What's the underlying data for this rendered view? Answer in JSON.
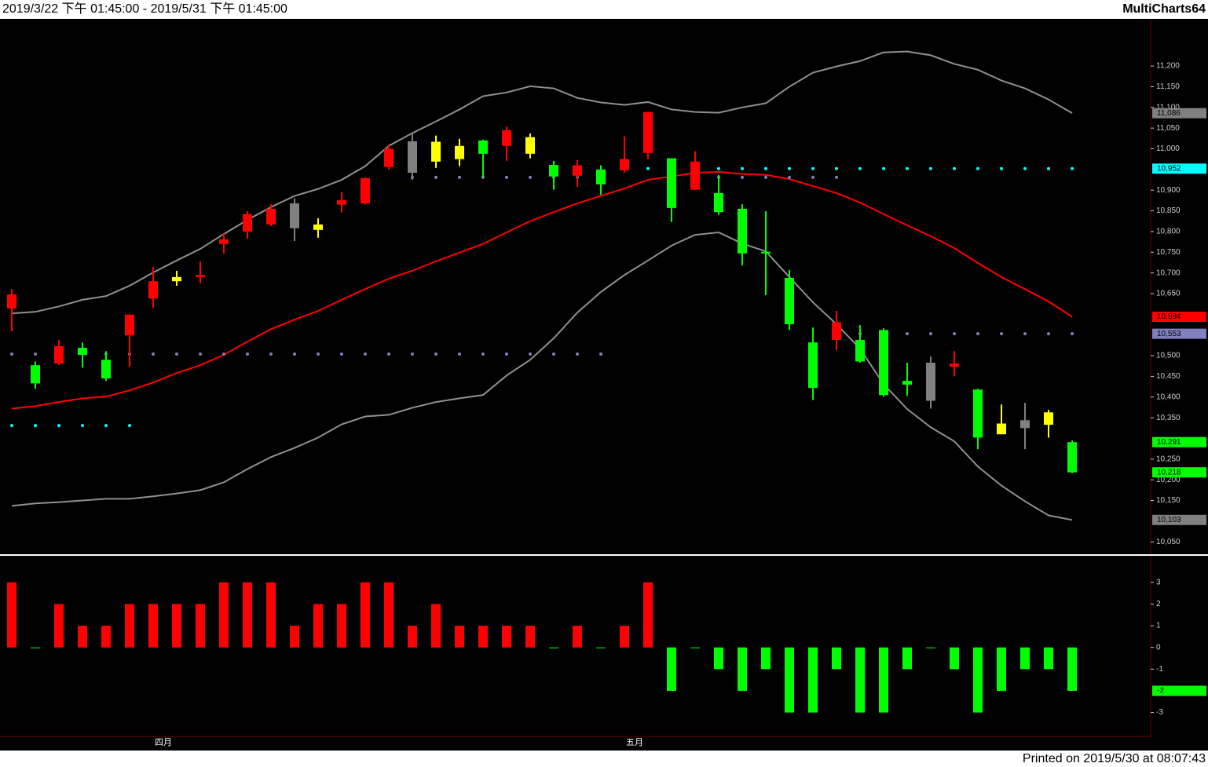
{
  "header": {
    "range": "2019/3/22 下午 01:45:00 - 2019/5/31 下午 01:45:00",
    "app": "MultiCharts64"
  },
  "footer": "Printed on 2019/5/30 at 08:07:43",
  "chart_data": [
    {
      "type": "candlestick",
      "open": [
        10614,
        10477,
        10481,
        10519,
        10490,
        10549,
        10638,
        10680,
        10690,
        10770,
        10800,
        10817,
        10868,
        10804,
        10865,
        10868,
        10956,
        11018,
        10969,
        10975,
        11020,
        11007,
        10988,
        10961,
        10935,
        10950,
        10948,
        10990,
        10977,
        10901,
        10893,
        10855,
        10751,
        10688,
        10532,
        10538,
        10538,
        10562,
        10439,
        10483,
        10473,
        10418,
        10336,
        10344,
        10333,
        10291
      ],
      "high": [
        10661,
        10486,
        10538,
        10532,
        10511,
        10600,
        10714,
        10705,
        10728,
        10796,
        10849,
        10866,
        10880,
        10832,
        10895,
        10931,
        11011,
        11036,
        11032,
        11024,
        11022,
        11053,
        11037,
        10971,
        10973,
        10960,
        11030,
        11089,
        10977,
        10994,
        10937,
        10866,
        10849,
        10707,
        10568,
        10608,
        10574,
        10566,
        10483,
        10498,
        10511,
        10420,
        10382,
        10386,
        10369,
        10295
      ],
      "low": [
        10559,
        10420,
        10477,
        10471,
        10439,
        10473,
        10616,
        10669,
        10675,
        10747,
        10783,
        10813,
        10777,
        10785,
        10846,
        10865,
        10950,
        10925,
        10954,
        10958,
        10931,
        10971,
        10977,
        10901,
        10908,
        10889,
        10942,
        10975,
        10823,
        10901,
        10840,
        10718,
        10646,
        10562,
        10393,
        10513,
        10483,
        10401,
        10403,
        10372,
        10450,
        10274,
        10310,
        10274,
        10302,
        10216
      ],
      "close": [
        10648,
        10433,
        10523,
        10502,
        10445,
        10599,
        10680,
        10690,
        10695,
        10781,
        10842,
        10855,
        10808,
        10817,
        10876,
        10929,
        11000,
        10942,
        11017,
        11007,
        10988,
        11045,
        11028,
        10933,
        10960,
        10914,
        10975,
        11089,
        10857,
        10969,
        10847,
        10747,
        10749,
        10576,
        10422,
        10581,
        10486,
        10405,
        10430,
        10391,
        10481,
        10302,
        10310,
        10325,
        10363,
        10218
      ],
      "candle_colors": [
        "#ff0000",
        "#00ff00",
        "#ff0000",
        "#00ff00",
        "#00ff00",
        "#ff0000",
        "#ff0000",
        "#ffff00",
        "#ff0000",
        "#ff0000",
        "#ff0000",
        "#ff0000",
        "#808080",
        "#ffff00",
        "#ff0000",
        "#ff0000",
        "#ff0000",
        "#808080",
        "#ffff00",
        "#ffff00",
        "#00ff00",
        "#ff0000",
        "#ffff00",
        "#00ff00",
        "#ff0000",
        "#00ff00",
        "#ff0000",
        "#ff0000",
        "#00ff00",
        "#ff0000",
        "#00ff00",
        "#00ff00",
        "#00ff00",
        "#00ff00",
        "#00ff00",
        "#ff0000",
        "#00ff00",
        "#00ff00",
        "#00ff00",
        "#808080",
        "#ff0000",
        "#00ff00",
        "#ffff00",
        "#808080",
        "#ffff00",
        "#00ff00"
      ],
      "series": [
        {
          "type": "line",
          "color": "#909090",
          "values": [
            10602,
            10606,
            10619,
            10635,
            10644,
            10669,
            10701,
            10730,
            10758,
            10794,
            10828,
            10859,
            10886,
            10903,
            10925,
            10958,
            11007,
            11038,
            11066,
            11095,
            11127,
            11136,
            11151,
            11146,
            11123,
            11112,
            11106,
            11113,
            11095,
            11089,
            11087,
            11100,
            11110,
            11150,
            11184,
            11199,
            11212,
            11233,
            11235,
            11226,
            11205,
            11191,
            11165,
            11146,
            11119,
            11086
          ]
        },
        {
          "type": "line",
          "color": "#ff0000",
          "values": [
            10372,
            10378,
            10388,
            10397,
            10401,
            10416,
            10435,
            10458,
            10477,
            10502,
            10534,
            10564,
            10587,
            10608,
            10635,
            10661,
            10686,
            10705,
            10728,
            10749,
            10770,
            10798,
            10825,
            10847,
            10868,
            10886,
            10904,
            10925,
            10933,
            10942,
            10944,
            10939,
            10937,
            10927,
            10910,
            10893,
            10870,
            10842,
            10815,
            10789,
            10760,
            10724,
            10690,
            10661,
            10631,
            10594
          ]
        },
        {
          "type": "line",
          "color": "#909090",
          "values": [
            10137,
            10143,
            10146,
            10150,
            10154,
            10154,
            10160,
            10167,
            10175,
            10194,
            10226,
            10255,
            10277,
            10302,
            10334,
            10353,
            10357,
            10374,
            10388,
            10397,
            10405,
            10452,
            10490,
            10542,
            10604,
            10654,
            10695,
            10730,
            10766,
            10792,
            10798,
            10771,
            10752,
            10690,
            10629,
            10576,
            10517,
            10431,
            10371,
            10327,
            10293,
            10232,
            10186,
            10148,
            10114,
            10103
          ]
        },
        {
          "type": "dots",
          "color": "#00ffff",
          "values": [
            10331,
            10331,
            10331,
            10331,
            10331,
            10331,
            null,
            null,
            null,
            null,
            null,
            null,
            null,
            null,
            null,
            null,
            null,
            null,
            null,
            null,
            null,
            null,
            null,
            null,
            null,
            null,
            null,
            10952,
            10952,
            10952,
            10952,
            10952,
            10952,
            10952,
            10952,
            10952,
            10952,
            10952,
            10952,
            10952,
            10952,
            10952,
            10952,
            10952,
            10952,
            10952
          ]
        },
        {
          "type": "dots",
          "color": "#8080c0",
          "values": [
            10504,
            10504,
            10504,
            10504,
            10504,
            10504,
            10504,
            10504,
            10504,
            10504,
            10504,
            10504,
            10504,
            10504,
            10504,
            10504,
            10504,
            10504,
            10504,
            10504,
            10504,
            10504,
            10504,
            10504,
            10504,
            10504,
            null,
            null,
            null,
            null,
            null,
            null,
            null,
            null,
            null,
            null,
            10553,
            10553,
            10553,
            10553,
            10553,
            10553,
            10553,
            10553,
            10553,
            10553
          ]
        },
        {
          "type": "dots",
          "color": "#8080c0",
          "values": [
            null,
            null,
            null,
            null,
            null,
            null,
            null,
            null,
            null,
            null,
            null,
            null,
            null,
            null,
            null,
            null,
            null,
            10931,
            10931,
            10931,
            10931,
            10931,
            10931,
            10931,
            10931,
            10931,
            null,
            null,
            10931,
            10931,
            10931,
            10931,
            10931,
            10931,
            10931,
            10931,
            null,
            null,
            null,
            null,
            null,
            null,
            null,
            null,
            null,
            null
          ]
        }
      ],
      "markers": [
        {
          "value": 11086,
          "label": "11,086",
          "color": "#808080"
        },
        {
          "value": 10952,
          "label": "10,952",
          "color": "#00ffff"
        },
        {
          "value": 10594,
          "label": "10,594",
          "color": "#ff0000"
        },
        {
          "value": 10553,
          "label": "10,553",
          "color": "#8080c0"
        },
        {
          "value": 10291,
          "label": "10,291",
          "color": "#00ff00"
        },
        {
          "value": 10218,
          "label": "10,218",
          "color": "#00ff00"
        },
        {
          "value": 10103,
          "label": "10,103",
          "color": "#808080"
        }
      ],
      "ylim": [
        10022,
        11314
      ],
      "yticks": [
        {
          "value": 11200,
          "label": "11,200"
        },
        {
          "value": 11150,
          "label": "11,150"
        },
        {
          "value": 11100,
          "label": "11,100"
        },
        {
          "value": 11050,
          "label": "11,050"
        },
        {
          "value": 11000,
          "label": "11,000"
        },
        {
          "value": 10900,
          "label": "10,900"
        },
        {
          "value": 10850,
          "label": "10,850"
        },
        {
          "value": 10800,
          "label": "10,800"
        },
        {
          "value": 10750,
          "label": "10,750"
        },
        {
          "value": 10700,
          "label": "10,700"
        },
        {
          "value": 10650,
          "label": "10,650"
        },
        {
          "value": 10500,
          "label": "10,500"
        },
        {
          "value": 10450,
          "label": "10,450"
        },
        {
          "value": 10400,
          "label": "10,400"
        },
        {
          "value": 10350,
          "label": "10,350"
        },
        {
          "value": 10250,
          "label": "10,250"
        },
        {
          "value": 10200,
          "label": "10,200"
        },
        {
          "value": 10150,
          "label": "10,150"
        },
        {
          "value": 10050,
          "label": "10,050"
        }
      ]
    },
    {
      "type": "bar",
      "categories": [
        null,
        null,
        null,
        null,
        null,
        null,
        "四月",
        null,
        null,
        null,
        null,
        null,
        null,
        null,
        null,
        null,
        null,
        null,
        null,
        null,
        null,
        null,
        null,
        null,
        null,
        null,
        "五月",
        null,
        null,
        null,
        null,
        null,
        null,
        null,
        null,
        null,
        null,
        null,
        null,
        null,
        null,
        null,
        null,
        null,
        null,
        null
      ],
      "values": [
        3,
        0,
        2,
        1,
        1,
        2,
        2,
        2,
        2,
        3,
        3,
        3,
        1,
        2,
        2,
        3,
        3,
        1,
        2,
        1,
        1,
        1,
        1,
        0,
        1,
        0,
        1,
        3,
        -2,
        0,
        -1,
        -2,
        -1,
        -3,
        -3,
        -1,
        -3,
        -3,
        -1,
        0,
        -1,
        -3,
        -2,
        -1,
        -1,
        -2
      ],
      "up_color": "#ff0000",
      "down_color": "#00ff00",
      "markers": [
        {
          "value": -2,
          "label": "-2",
          "color": "#00ff00"
        }
      ],
      "ylim": [
        -4.1,
        4.15
      ],
      "yticks": [
        3,
        2,
        1,
        0,
        -1,
        -3
      ]
    }
  ]
}
